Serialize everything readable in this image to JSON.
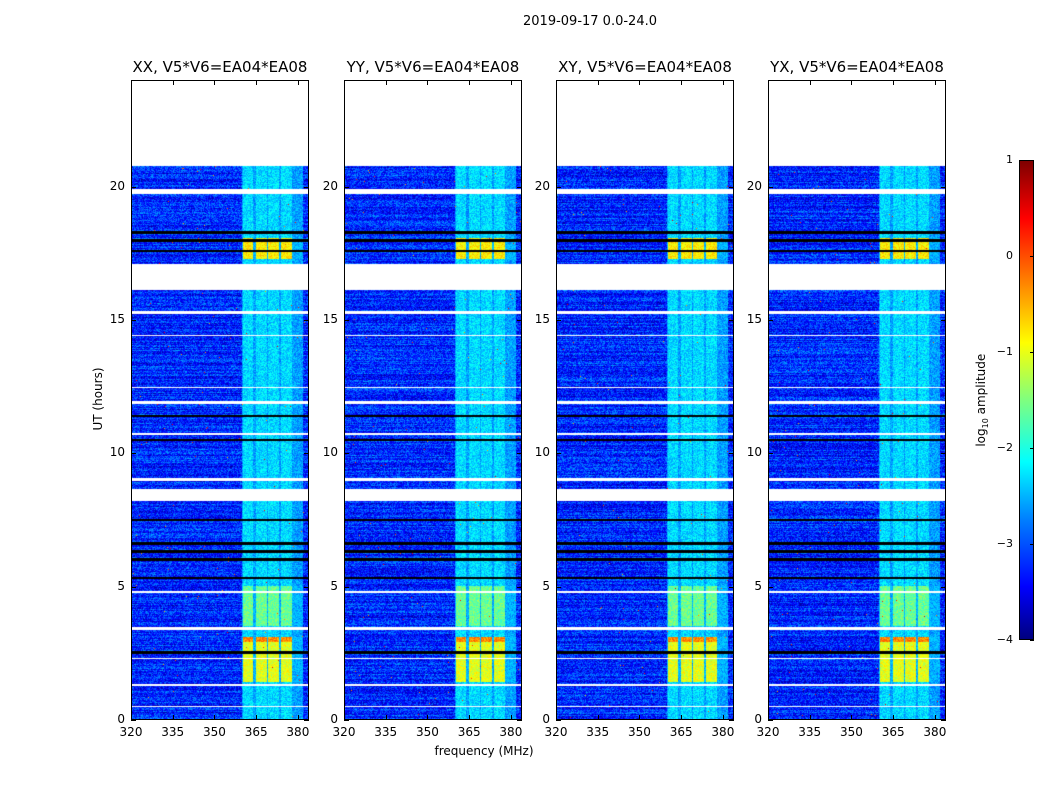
{
  "chart_data": {
    "type": "heatmap",
    "title": "2019-09-17 0.0-24.0",
    "panels": [
      {
        "title": "XX, V5*V6=EA04*EA08",
        "seed": 11
      },
      {
        "title": "YY, V5*V6=EA04*EA08",
        "seed": 23
      },
      {
        "title": "XY, V5*V6=EA04*EA08",
        "seed": 37
      },
      {
        "title": "YX, V5*V6=EA04*EA08",
        "seed": 51
      }
    ],
    "xlabel": "frequency (MHz)",
    "ylabel": "UT (hours)",
    "xlim": [
      320,
      384
    ],
    "ylim": [
      0,
      24
    ],
    "xticks": [
      320,
      335,
      350,
      365,
      380
    ],
    "xtick_labels": [
      "320",
      "335",
      "350",
      "365",
      "380"
    ],
    "yticks": [
      0,
      5,
      10,
      15,
      20
    ],
    "ytick_labels": [
      "0",
      "5",
      "10",
      "15",
      "20"
    ],
    "colorbar": {
      "label_prefix": "log",
      "label_sub": "10",
      "label_suffix": " amplitude",
      "range": [
        -4,
        1
      ],
      "ticks": [
        1,
        0,
        -1,
        -2,
        -3,
        -4
      ],
      "tick_labels": [
        "1",
        "0",
        "−1",
        "−2",
        "−3",
        "−4"
      ],
      "colormap": "jet"
    },
    "baseline_log_amp": -3.2,
    "flagged_hours": [
      [
        20.8,
        24
      ],
      [
        19.75,
        19.95
      ],
      [
        16.15,
        17.1
      ],
      [
        15.25,
        15.35
      ],
      [
        14.4,
        14.45
      ],
      [
        12.45,
        12.5
      ],
      [
        11.85,
        11.95
      ],
      [
        10.7,
        10.75
      ],
      [
        8.95,
        9.05
      ],
      [
        8.2,
        8.65
      ],
      [
        4.75,
        4.8
      ],
      [
        3.35,
        3.45
      ],
      [
        2.25,
        2.3
      ],
      [
        1.25,
        1.3
      ],
      [
        0.45,
        0.5
      ]
    ],
    "dark_lines_hours": [
      18.3,
      17.6,
      11.4,
      10.5,
      7.5,
      6.6,
      6.3,
      6.0,
      2.5,
      18.0,
      5.3
    ],
    "rfi_columns_mhz": [
      [
        360.5,
        364
      ],
      [
        365,
        369
      ],
      [
        369.6,
        373.6
      ],
      [
        374.2,
        378.2
      ]
    ],
    "features": [
      {
        "t": [
          0,
          24
        ],
        "log_amp": -2.3
      },
      {
        "t": [
          17.3,
          18.1
        ],
        "log_amp": -0.8
      },
      {
        "t": [
          1.4,
          3.1
        ],
        "log_amp": -1.0
      },
      {
        "t": [
          2.9,
          3.1
        ],
        "log_amp": -0.3
      },
      {
        "t": [
          3.5,
          5.0
        ],
        "log_amp": -1.6
      }
    ]
  }
}
